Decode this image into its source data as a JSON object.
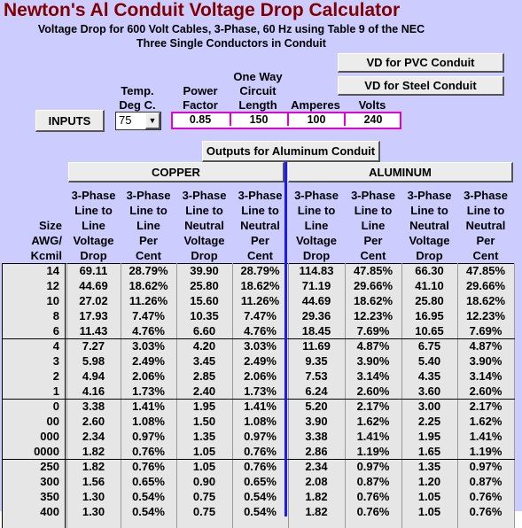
{
  "header": {
    "title": "Newton's Al Conduit Voltage Drop Calculator",
    "subtitle": [
      "Voltage Drop for 600 Volt Cables, 3-Phase, 60 Hz using Table 9 of the NEC",
      "Three Single Conductors in Conduit"
    ]
  },
  "buttons": {
    "pvc": "VD for PVC Conduit",
    "steel": "VD for Steel Conduit",
    "inputs": "INPUTS",
    "outputs": "Outputs for Aluminum Conduit"
  },
  "temperature": {
    "label": [
      "Temp.",
      "Deg C."
    ],
    "value": "75"
  },
  "input_fields": [
    {
      "label": [
        "Power",
        "Factor"
      ],
      "value": "0.85"
    },
    {
      "label": [
        "One Way",
        "Circuit",
        "Length"
      ],
      "value": "150"
    },
    {
      "label": [
        "Amperes"
      ],
      "value": "100"
    },
    {
      "label": [
        "Volts"
      ],
      "value": "240"
    }
  ],
  "table": {
    "groups": [
      "COPPER",
      "ALUMINUM"
    ],
    "size_header": [
      "Size",
      "AWG/",
      "Kcmil"
    ],
    "columns": [
      [
        "3-Phase",
        "Line to",
        "Line",
        "Voltage",
        "Drop"
      ],
      [
        "3-Phase",
        "Line to",
        "Line",
        "Per",
        "Cent"
      ],
      [
        "3-Phase",
        "Line to",
        "Neutral",
        "Voltage",
        "Drop"
      ],
      [
        "3-Phase",
        "Line to",
        "Neutral",
        "Per",
        "Cent"
      ],
      [
        "3-Phase",
        "Line to",
        "Line",
        "Voltage",
        "Drop"
      ],
      [
        "3-Phase",
        "Line to",
        "Line",
        "Per",
        "Cent"
      ],
      [
        "3-Phase",
        "Line to",
        "Neutral",
        "Voltage",
        "Drop"
      ],
      [
        "3-Phase",
        "Line to",
        "Neutral",
        "Per",
        "Cent"
      ]
    ],
    "row_groups": [
      [
        [
          "14",
          "69.11",
          "28.79%",
          "39.90",
          "28.79%",
          "114.83",
          "47.85%",
          "66.30",
          "47.85%"
        ],
        [
          "12",
          "44.69",
          "18.62%",
          "25.80",
          "18.62%",
          "71.19",
          "29.66%",
          "41.10",
          "29.66%"
        ],
        [
          "10",
          "27.02",
          "11.26%",
          "15.60",
          "11.26%",
          "44.69",
          "18.62%",
          "25.80",
          "18.62%"
        ],
        [
          "8",
          "17.93",
          "7.47%",
          "10.35",
          "7.47%",
          "29.36",
          "12.23%",
          "16.95",
          "12.23%"
        ],
        [
          "6",
          "11.43",
          "4.76%",
          "6.60",
          "4.76%",
          "18.45",
          "7.69%",
          "10.65",
          "7.69%"
        ]
      ],
      [
        [
          "4",
          "7.27",
          "3.03%",
          "4.20",
          "3.03%",
          "11.69",
          "4.87%",
          "6.75",
          "4.87%"
        ],
        [
          "3",
          "5.98",
          "2.49%",
          "3.45",
          "2.49%",
          "9.35",
          "3.90%",
          "5.40",
          "3.90%"
        ],
        [
          "2",
          "4.94",
          "2.06%",
          "2.85",
          "2.06%",
          "7.53",
          "3.14%",
          "4.35",
          "3.14%"
        ],
        [
          "1",
          "4.16",
          "1.73%",
          "2.40",
          "1.73%",
          "6.24",
          "2.60%",
          "3.60",
          "2.60%"
        ]
      ],
      [
        [
          "0",
          "3.38",
          "1.41%",
          "1.95",
          "1.41%",
          "5.20",
          "2.17%",
          "3.00",
          "2.17%"
        ],
        [
          "00",
          "2.60",
          "1.08%",
          "1.50",
          "1.08%",
          "3.90",
          "1.62%",
          "2.25",
          "1.62%"
        ],
        [
          "000",
          "2.34",
          "0.97%",
          "1.35",
          "0.97%",
          "3.38",
          "1.41%",
          "1.95",
          "1.41%"
        ],
        [
          "0000",
          "1.82",
          "0.76%",
          "1.05",
          "0.76%",
          "2.86",
          "1.19%",
          "1.65",
          "1.19%"
        ]
      ],
      [
        [
          "250",
          "1.82",
          "0.76%",
          "1.05",
          "0.76%",
          "2.34",
          "0.97%",
          "1.35",
          "0.97%"
        ],
        [
          "300",
          "1.56",
          "0.65%",
          "0.90",
          "0.65%",
          "2.08",
          "0.87%",
          "1.20",
          "0.87%"
        ],
        [
          "350",
          "1.30",
          "0.54%",
          "0.75",
          "0.54%",
          "1.82",
          "0.76%",
          "1.05",
          "0.76%"
        ],
        [
          "400",
          "1.30",
          "0.54%",
          "0.75",
          "0.54%",
          "1.82",
          "0.76%",
          "1.05",
          "0.76%"
        ]
      ]
    ]
  }
}
